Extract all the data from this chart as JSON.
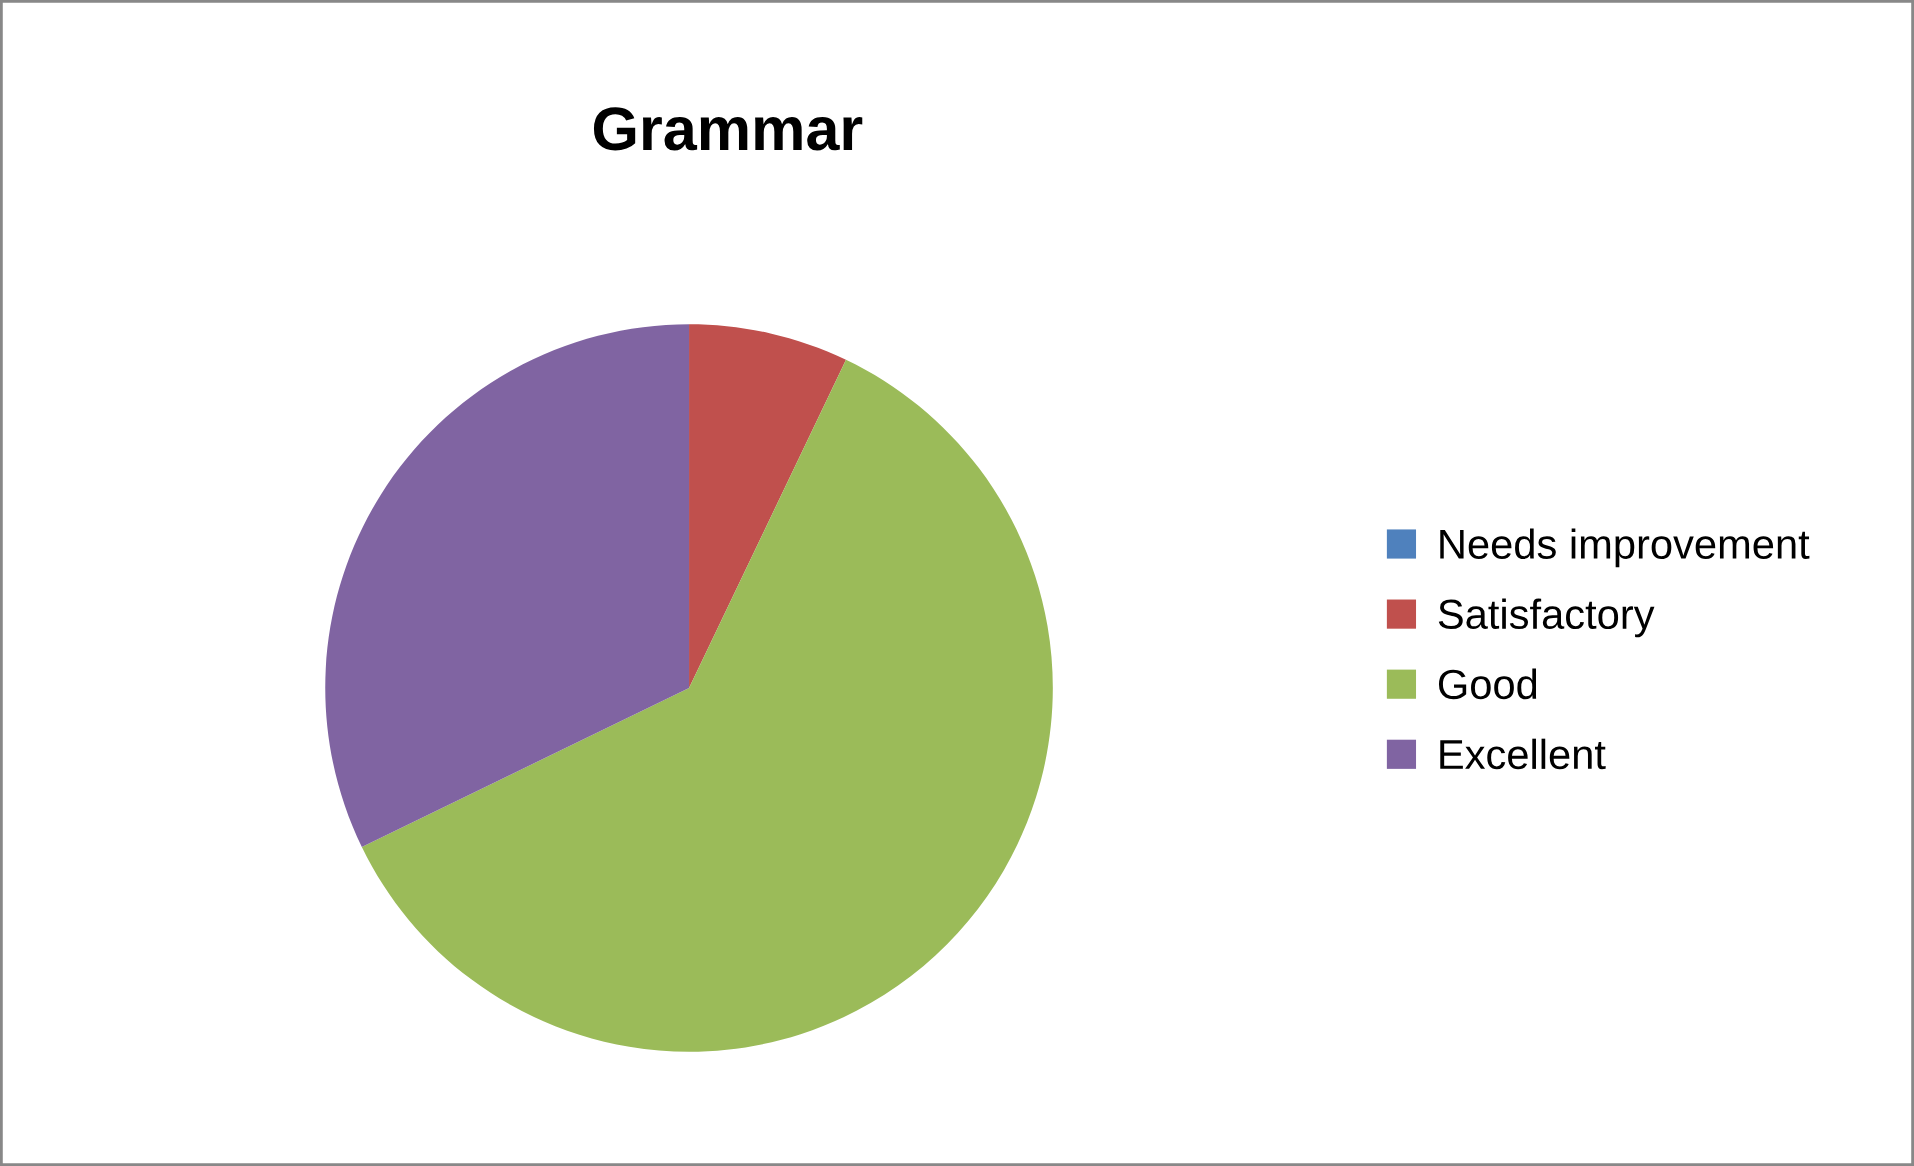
{
  "chart_data": {
    "type": "pie",
    "title": "Grammar",
    "categories": [
      "Needs improvement",
      "Satisfactory",
      "Good",
      "Excellent"
    ],
    "values": [
      0,
      7.1,
      60.7,
      32.2
    ],
    "colors": [
      "#4f81bd",
      "#c0504d",
      "#9bbb59",
      "#8064a2"
    ],
    "legend": "right"
  }
}
